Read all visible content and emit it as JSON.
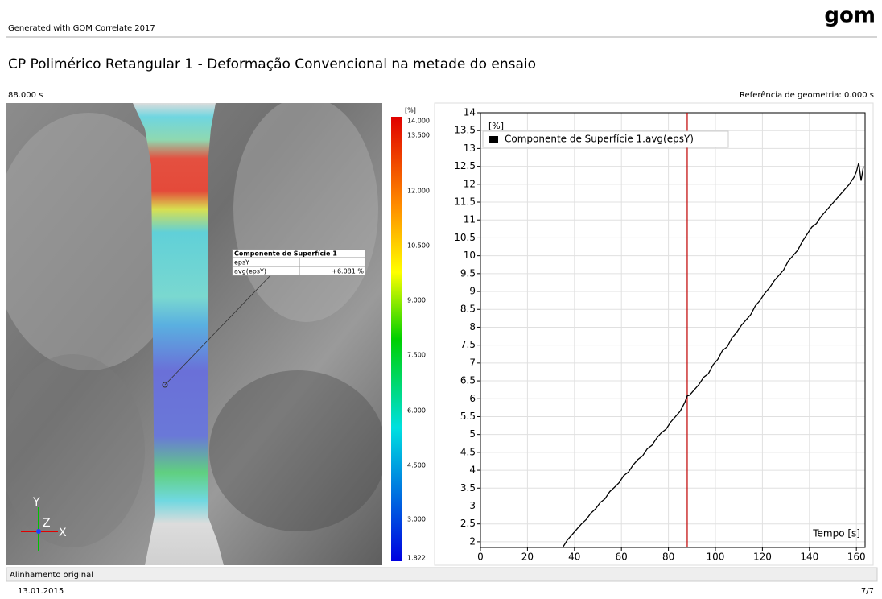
{
  "header": {
    "generator": "Generated with GOM Correlate 2017",
    "logo": "gom"
  },
  "title": "CP Polimérico Retangular 1 - Deformação Convencional na metade do ensaio",
  "time_label": "88.000 s",
  "reference_label": "Referência de geometria: 0.000 s",
  "colorbar": {
    "unit": "[%]",
    "ticks": [
      "14.000",
      "13.500",
      "12.000",
      "10.500",
      "9.000",
      "7.500",
      "6.000",
      "4.500",
      "3.000",
      "1.822"
    ]
  },
  "probe": {
    "title": "Componente de Superfície 1",
    "rows": [
      [
        "epsY"
      ],
      [
        "avg(epsY)",
        "+6.081 %"
      ]
    ]
  },
  "axes_triad": [
    "Y",
    "Z",
    "X"
  ],
  "footer": {
    "status": "Alinhamento original",
    "date": "13.01.2015",
    "page": "7/7"
  },
  "chart_data": {
    "type": "line",
    "y_label": "[%]",
    "x_label": "Tempo [s]",
    "x": [
      35,
      37,
      39,
      41,
      43,
      45,
      47,
      49,
      51,
      53,
      55,
      57,
      59,
      61,
      63,
      65,
      67,
      69,
      71,
      73,
      75,
      77,
      79,
      81,
      83,
      85,
      87,
      88,
      89,
      91,
      93,
      95,
      97,
      99,
      101,
      103,
      105,
      107,
      109,
      111,
      113,
      115,
      117,
      119,
      121,
      123,
      125,
      127,
      129,
      131,
      133,
      135,
      137,
      139,
      141,
      143,
      145,
      147,
      149,
      151,
      153,
      155,
      157,
      159,
      160,
      161,
      162,
      163
    ],
    "series": [
      {
        "name": "Componente de Superfície 1.avg(epsY)",
        "color": "#000000",
        "values": [
          1.84,
          2.05,
          2.2,
          2.35,
          2.5,
          2.62,
          2.8,
          2.92,
          3.1,
          3.2,
          3.4,
          3.52,
          3.65,
          3.85,
          3.95,
          4.15,
          4.3,
          4.4,
          4.6,
          4.7,
          4.9,
          5.05,
          5.15,
          5.35,
          5.5,
          5.65,
          5.9,
          6.08,
          6.1,
          6.25,
          6.4,
          6.6,
          6.7,
          6.95,
          7.1,
          7.35,
          7.45,
          7.7,
          7.85,
          8.05,
          8.2,
          8.35,
          8.6,
          8.75,
          8.95,
          9.1,
          9.3,
          9.45,
          9.6,
          9.85,
          10.0,
          10.15,
          10.4,
          10.6,
          10.8,
          10.9,
          11.1,
          11.25,
          11.4,
          11.55,
          11.7,
          11.85,
          12.0,
          12.2,
          12.35,
          12.6,
          12.1,
          12.5
        ]
      }
    ],
    "xlim": [
      0,
      163.7
    ],
    "ylim": [
      1.84,
      14
    ],
    "xticks": [
      0,
      20,
      40,
      60,
      80,
      100,
      120,
      140,
      160
    ],
    "yticks": [
      2,
      2.5,
      3,
      3.5,
      4,
      4.5,
      5,
      5.5,
      6,
      6.5,
      7,
      7.5,
      8,
      8.5,
      9,
      9.5,
      10,
      10.5,
      11,
      11.5,
      12,
      12.5,
      13,
      13.5,
      14
    ],
    "grid": true,
    "marker_x": 88,
    "marker_color": "#c00000"
  }
}
